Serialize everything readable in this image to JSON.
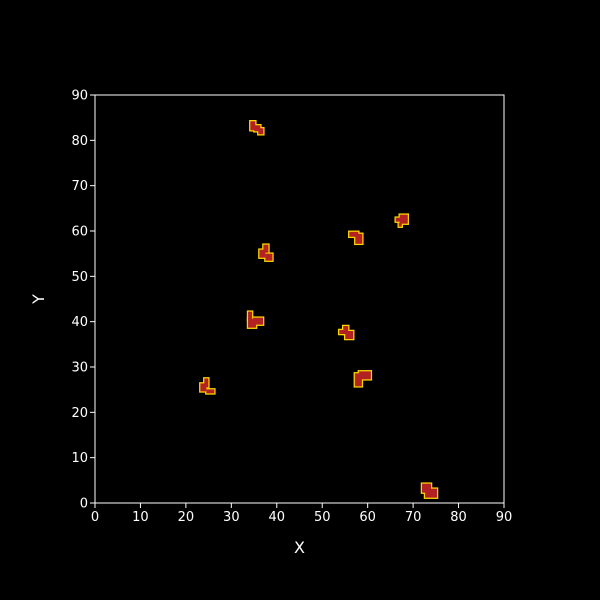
{
  "chart_data": {
    "type": "scatter",
    "title": "",
    "xlabel": "X",
    "ylabel": "Y",
    "xlim": [
      0,
      90
    ],
    "ylim": [
      0,
      90
    ],
    "x_ticks": [
      0,
      10,
      20,
      30,
      40,
      50,
      60,
      70,
      80,
      90
    ],
    "y_ticks": [
      0,
      10,
      20,
      30,
      40,
      50,
      60,
      70,
      80,
      90
    ],
    "grid": false,
    "legend": "none",
    "background_color": "#000000",
    "frame_color": "#ffffff",
    "text_color": "#ffffff",
    "marker_fill_color": "#b22222",
    "marker_edge_color": "#ffd700",
    "marker_style": "blocky-pixel-cluster",
    "series": [
      {
        "points": [
          {
            "x": 35.5,
            "y": 82.0
          },
          {
            "x": 67.5,
            "y": 62.5
          },
          {
            "x": 57.5,
            "y": 58.5
          },
          {
            "x": 37.5,
            "y": 55.0
          },
          {
            "x": 35.0,
            "y": 40.0
          },
          {
            "x": 55.5,
            "y": 37.5
          },
          {
            "x": 58.5,
            "y": 27.5
          },
          {
            "x": 24.5,
            "y": 25.5
          },
          {
            "x": 73.5,
            "y": 2.5
          }
        ]
      }
    ]
  }
}
